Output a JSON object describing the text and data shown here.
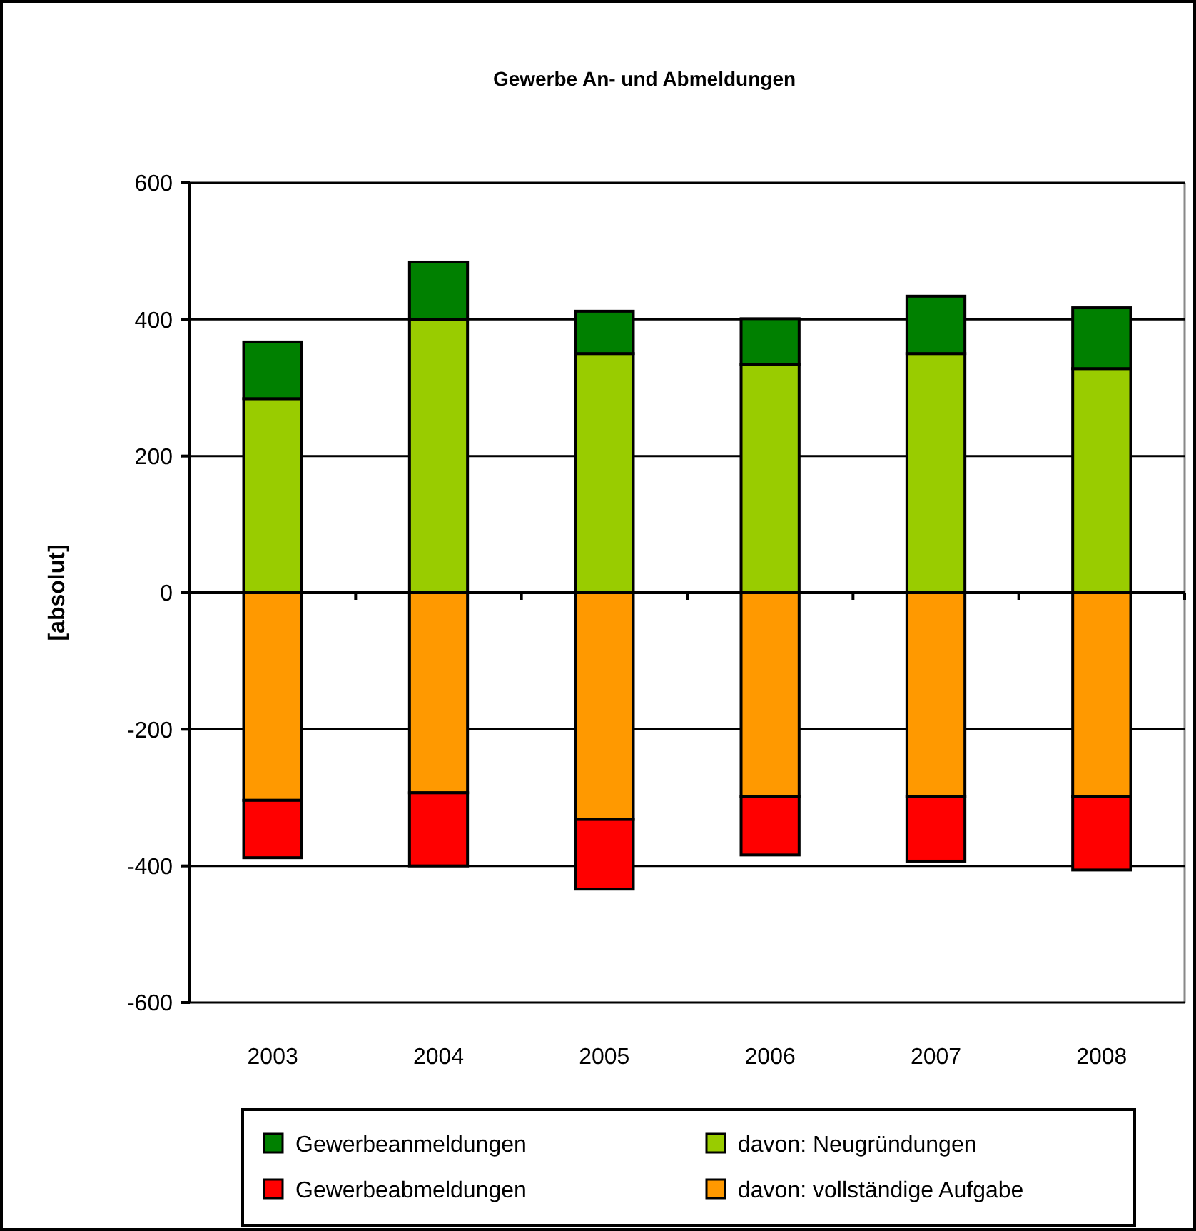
{
  "chart_data": {
    "type": "bar",
    "title": "Gewerbe An- und Abmeldungen",
    "ylabel": "[absolut]",
    "categories": [
      "2003",
      "2004",
      "2005",
      "2006",
      "2007",
      "2008"
    ],
    "stacked": true,
    "series": [
      {
        "name": "davon: Neugründungen",
        "color": "#99cc00",
        "values": [
          284,
          400,
          350,
          334,
          350,
          328
        ]
      },
      {
        "name": "Gewerbeanmeldungen",
        "color": "#008000",
        "values": [
          83,
          84,
          62,
          67,
          84,
          89
        ]
      },
      {
        "name": "davon: vollständige Aufgabe",
        "color": "#ff9900",
        "values": [
          -304,
          -293,
          -332,
          -298,
          -298,
          -298
        ]
      },
      {
        "name": "Gewerbeabmeldungen",
        "color": "#ff0000",
        "values": [
          -84,
          -107,
          -102,
          -86,
          -95,
          -108
        ]
      }
    ],
    "ylim": [
      -600,
      600
    ],
    "yticks": [
      -600,
      -400,
      -200,
      0,
      200,
      400,
      600
    ],
    "grid": "y",
    "legend": "bottom"
  }
}
